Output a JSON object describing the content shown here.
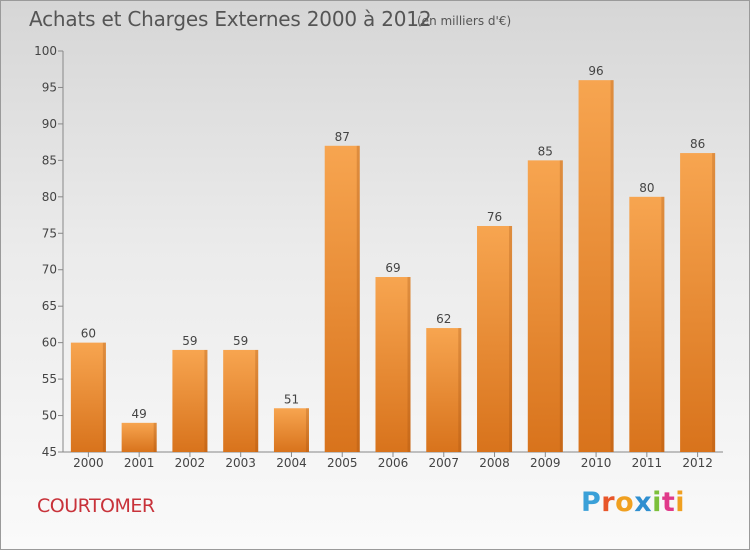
{
  "header": {
    "title": "Achats et Charges Externes 2000 à 2012",
    "subtitle": "(en milliers d'€)"
  },
  "footer": {
    "commune": "COURTOMER",
    "logo_text": "Proxiti",
    "logo_colors": [
      "#3aa0d8",
      "#e8562a",
      "#f0a020",
      "#2f8fd0",
      "#7cc03a",
      "#e03a8a",
      "#f0a020"
    ]
  },
  "chart_data": {
    "type": "bar",
    "title": "Achats et Charges Externes 2000 à 2012",
    "subtitle": "(en milliers d'€)",
    "xlabel": "",
    "ylabel": "",
    "categories": [
      "2000",
      "2001",
      "2002",
      "2003",
      "2004",
      "2005",
      "2006",
      "2007",
      "2008",
      "2009",
      "2010",
      "2011",
      "2012"
    ],
    "values": [
      60,
      49,
      59,
      59,
      51,
      87,
      69,
      62,
      76,
      85,
      96,
      80,
      86
    ],
    "ylim": [
      45,
      100
    ],
    "yticks": [
      45,
      50,
      55,
      60,
      65,
      70,
      75,
      80,
      85,
      90,
      95,
      100
    ],
    "data_labels": true,
    "grid": false,
    "legend": "none",
    "bar_color_top": "#f7a550",
    "bar_color_bottom": "#d8731c"
  }
}
